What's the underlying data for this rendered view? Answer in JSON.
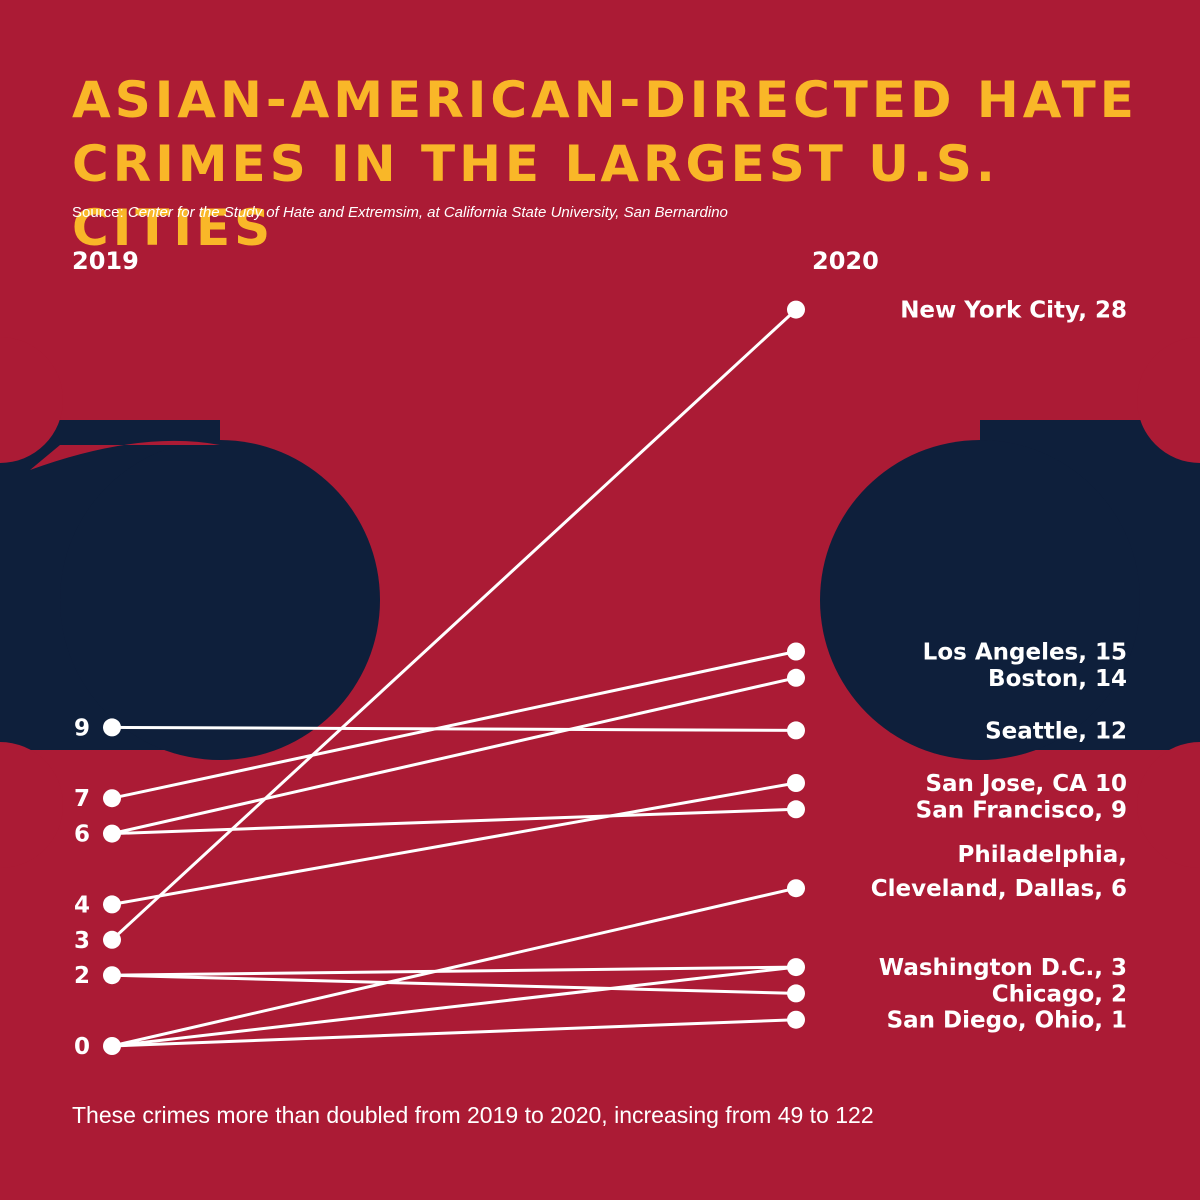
{
  "title_lines": [
    "Asian-American-Directed Hate",
    "Crimes in the Largest U.S. Cities"
  ],
  "source_prefix": "Source: ",
  "source_text": "Center for the Study of Hate and Extremsim, at California State University, San Bernardino",
  "footer": "These crimes more than doubled from 2019 to 2020, increasing from 49 to 122",
  "colors": {
    "background": "#ab1b35",
    "blob": "#0e1f3b",
    "title": "#f9b728",
    "lines": "#ffffff"
  },
  "chart_data": {
    "type": "slope",
    "x": [
      "2019",
      "2020"
    ],
    "ylim": [
      0,
      28
    ],
    "left_ticks": [
      "9",
      "7",
      "6",
      "4",
      "3",
      "2",
      "0"
    ],
    "series": [
      {
        "name": "New York City",
        "values": [
          3,
          28
        ]
      },
      {
        "name": "Los Angeles",
        "values": [
          7,
          15
        ]
      },
      {
        "name": "Boston",
        "values": [
          6,
          14
        ]
      },
      {
        "name": "Seattle",
        "values": [
          9,
          12
        ]
      },
      {
        "name": "San Jose, CA",
        "values": [
          4,
          10
        ]
      },
      {
        "name": "San Francisco",
        "values": [
          6,
          9
        ]
      },
      {
        "name": "Philadelphia, Cleveland, Dallas",
        "values": [
          0,
          6
        ]
      },
      {
        "name": "Washington D.C.",
        "values": [
          2,
          3
        ]
      },
      {
        "name": "Washington D.C.",
        "values": [
          0,
          3
        ]
      },
      {
        "name": "Chicago",
        "values": [
          2,
          2
        ]
      },
      {
        "name": "San Diego, Ohio",
        "values": [
          0,
          1
        ]
      }
    ],
    "right_labels": [
      {
        "lines": [
          "New York City, 28"
        ],
        "value": 28
      },
      {
        "lines": [
          "Los Angeles, 15"
        ],
        "value": 15
      },
      {
        "lines": [
          "Boston, 14"
        ],
        "value": 14
      },
      {
        "lines": [
          "Seattle, 12"
        ],
        "value": 12
      },
      {
        "lines": [
          "San Jose, CA 10"
        ],
        "value": 10
      },
      {
        "lines": [
          "San Francisco, 9"
        ],
        "value": 9
      },
      {
        "lines": [
          "Philadelphia,",
          "Cleveland, Dallas, 6"
        ],
        "value": 6
      },
      {
        "lines": [
          "Washington D.C., 3"
        ],
        "value": 3
      },
      {
        "lines": [
          "Chicago, 2"
        ],
        "value": 2
      },
      {
        "lines": [
          "San Diego, Ohio, 1"
        ],
        "value": 1
      }
    ]
  }
}
